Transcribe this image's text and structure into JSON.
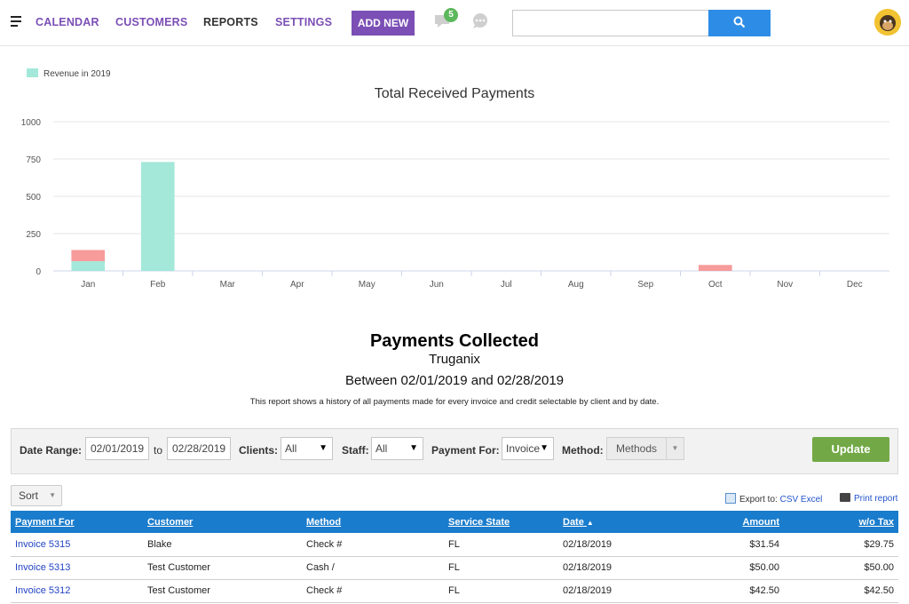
{
  "nav": {
    "items": [
      "CALENDAR",
      "CUSTOMERS",
      "REPORTS",
      "SETTINGS"
    ],
    "add_new": "ADD NEW",
    "message_count": "5",
    "search_placeholder": ""
  },
  "chart": {
    "legend": "Revenue in 2019",
    "title": "Total Received Payments"
  },
  "chart_data": {
    "type": "bar",
    "title": "Total Received Payments",
    "categories": [
      "Jan",
      "Feb",
      "Mar",
      "Apr",
      "May",
      "Jun",
      "Jul",
      "Aug",
      "Sep",
      "Oct",
      "Nov",
      "Dec"
    ],
    "series": [
      {
        "name": "Revenue in 2019",
        "color": "#a3e8d9",
        "values": [
          65,
          730,
          0,
          0,
          0,
          0,
          0,
          0,
          0,
          0,
          0,
          0
        ]
      },
      {
        "color": "#f79b9b",
        "values": [
          75,
          0,
          0,
          0,
          0,
          0,
          0,
          0,
          0,
          40,
          0,
          0
        ]
      }
    ],
    "stacked": true,
    "yticks": [
      0,
      250,
      500,
      750,
      1000
    ],
    "ylim": [
      0,
      1000
    ],
    "grid": true,
    "legend_position": "top-left"
  },
  "report": {
    "title": "Payments Collected",
    "company": "Truganix",
    "range": "Between 02/01/2019 and 02/28/2019",
    "description": "This report shows a history of all payments made for every invoice and credit selectable by client and by date."
  },
  "filters": {
    "date_range_label": "Date Range:",
    "date_from": "02/01/2019",
    "to_label": "to",
    "date_to": "02/28/2019",
    "clients_label": "Clients:",
    "clients_value": "All",
    "staff_label": "Staff:",
    "staff_value": "All",
    "payment_for_label": "Payment For:",
    "payment_for_value": "Invoice",
    "method_label": "Method:",
    "method_value": "Methods",
    "update": "Update"
  },
  "toolbar": {
    "sort": "Sort",
    "export_label": "Export to:",
    "export_link": "CSV Excel",
    "print": "Print report"
  },
  "table": {
    "headers": [
      "Payment For",
      "Customer",
      "Method",
      "Service State",
      "Date",
      "Amount",
      "w/o Tax"
    ],
    "rows": [
      [
        "Invoice 5315",
        "Blake",
        "Check #",
        "FL",
        "02/18/2019",
        "$31.54",
        "$29.75"
      ],
      [
        "Invoice 5313",
        "Test Customer",
        "Cash /",
        "FL",
        "02/18/2019",
        "$50.00",
        "$50.00"
      ],
      [
        "Invoice 5312",
        "Test Customer",
        "Check #",
        "FL",
        "02/18/2019",
        "$42.50",
        "$42.50"
      ]
    ]
  }
}
